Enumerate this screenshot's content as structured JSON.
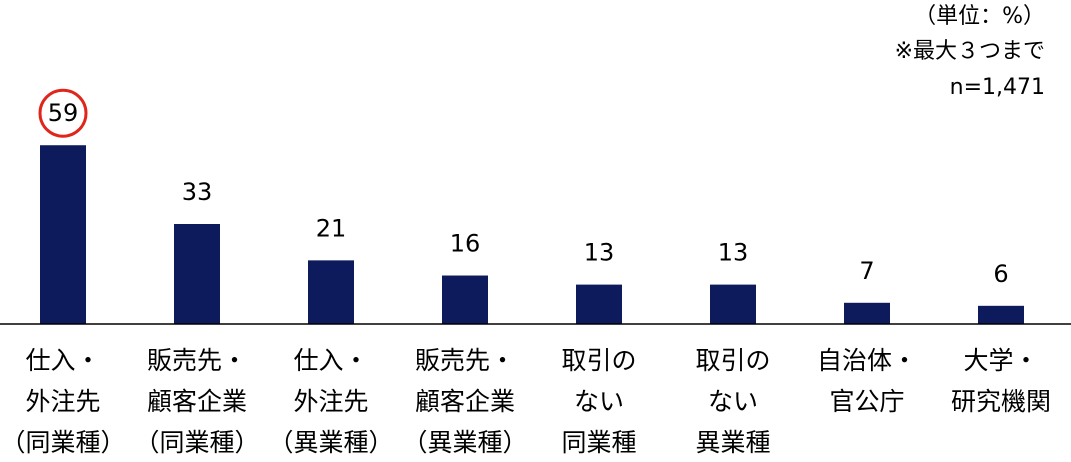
{
  "chart_data": {
    "type": "bar",
    "categories": [
      [
        "仕入・",
        "外注先",
        "（同業種）"
      ],
      [
        "販売先・",
        "顧客企業",
        "（同業種）"
      ],
      [
        "仕入・",
        "外注先",
        "（異業種）"
      ],
      [
        "販売先・",
        "顧客企業",
        "（異業種）"
      ],
      [
        "取引の",
        "ない",
        "同業種"
      ],
      [
        "取引の",
        "ない",
        "異業種"
      ],
      [
        "自治体・",
        "官公庁"
      ],
      [
        "大学・",
        "研究機関"
      ]
    ],
    "values": [
      59,
      33,
      21,
      16,
      13,
      13,
      7,
      6
    ],
    "notes": [
      "（単位：%）",
      "※最大３つまで",
      "n=1,471"
    ],
    "highlight_index": 0,
    "ylim": [
      0,
      70
    ],
    "grid": false,
    "colors": {
      "bar": "#0d1a5c",
      "highlight_circle": "#e0251b",
      "axis": "#000000"
    }
  }
}
